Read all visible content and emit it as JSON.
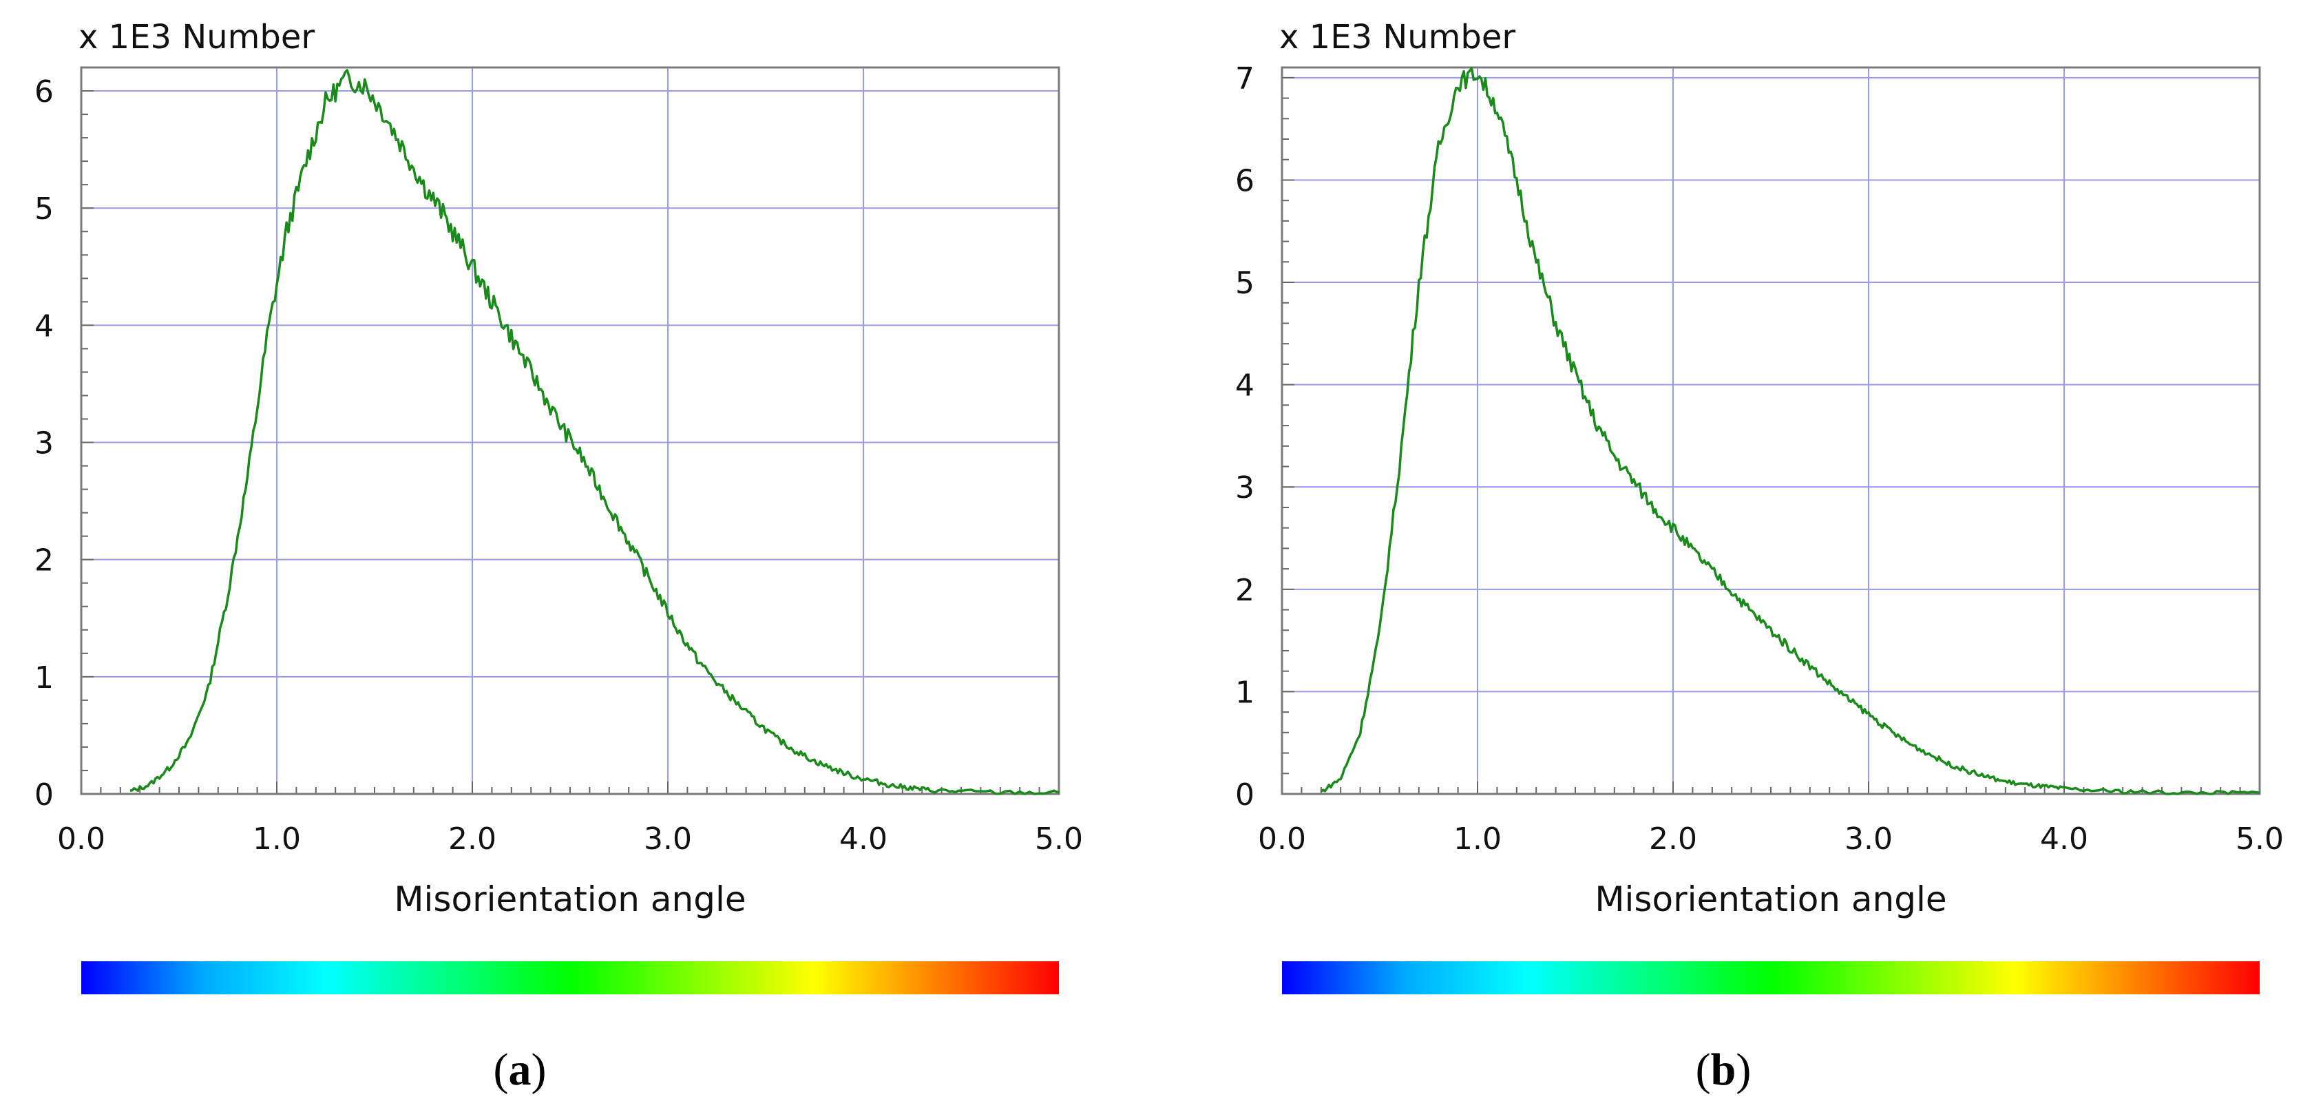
{
  "chart_data": [
    {
      "type": "line",
      "caption_letter": "a",
      "ylabel": "x 1E3 Number",
      "xlabel": "Misorientation angle",
      "xlim": [
        0,
        5
      ],
      "ylim": [
        0,
        6.2
      ],
      "xticks": [
        "0.0",
        "1.0",
        "2.0",
        "3.0",
        "4.0",
        "5.0"
      ],
      "yticks": [
        "0",
        "1",
        "2",
        "3",
        "4",
        "5",
        "6"
      ],
      "grid": true,
      "line_color": "#1a8a1a",
      "colorbar": [
        "#0000ff",
        "#00aaff",
        "#00ffff",
        "#00ff80",
        "#00ff00",
        "#80ff00",
        "#ffff00",
        "#ff8000",
        "#ff0000"
      ],
      "x": [
        0.25,
        0.35,
        0.45,
        0.55,
        0.65,
        0.75,
        0.85,
        0.95,
        1.05,
        1.15,
        1.25,
        1.35,
        1.45,
        1.55,
        1.65,
        1.75,
        1.85,
        1.95,
        2.05,
        2.15,
        2.25,
        2.35,
        2.45,
        2.55,
        2.65,
        2.75,
        2.85,
        2.95,
        3.05,
        3.15,
        3.25,
        3.35,
        3.45,
        3.55,
        3.65,
        3.75,
        3.85,
        3.95,
        4.05,
        4.15,
        4.25,
        4.35,
        4.5,
        4.75,
        5.0
      ],
      "y": [
        0.02,
        0.08,
        0.22,
        0.45,
        0.9,
        1.7,
        2.7,
        3.9,
        4.8,
        5.4,
        5.9,
        6.1,
        6.05,
        5.8,
        5.5,
        5.2,
        4.95,
        4.65,
        4.35,
        4.05,
        3.75,
        3.45,
        3.15,
        2.9,
        2.6,
        2.3,
        2.0,
        1.7,
        1.4,
        1.15,
        0.95,
        0.78,
        0.62,
        0.48,
        0.37,
        0.28,
        0.21,
        0.15,
        0.11,
        0.07,
        0.05,
        0.03,
        0.02,
        0.01,
        0.01
      ]
    },
    {
      "type": "line",
      "caption_letter": "b",
      "ylabel": "x 1E3 Number",
      "xlabel": "Misorientation angle",
      "xlim": [
        0,
        5
      ],
      "ylim": [
        0,
        7.1
      ],
      "xticks": [
        "0.0",
        "1.0",
        "2.0",
        "3.0",
        "4.0",
        "5.0"
      ],
      "yticks": [
        "0",
        "1",
        "2",
        "3",
        "4",
        "5",
        "6",
        "7"
      ],
      "grid": true,
      "line_color": "#1a8a1a",
      "colorbar": [
        "#0000ff",
        "#00aaff",
        "#00ffff",
        "#00ff80",
        "#00ff00",
        "#80ff00",
        "#ffff00",
        "#ff8000",
        "#ff0000"
      ],
      "x": [
        0.2,
        0.3,
        0.4,
        0.5,
        0.6,
        0.7,
        0.8,
        0.9,
        1.0,
        1.1,
        1.2,
        1.3,
        1.4,
        1.5,
        1.6,
        1.7,
        1.8,
        1.9,
        2.0,
        2.1,
        2.2,
        2.3,
        2.4,
        2.5,
        2.6,
        2.7,
        2.8,
        2.9,
        3.0,
        3.1,
        3.2,
        3.3,
        3.4,
        3.5,
        3.6,
        3.7,
        3.8,
        3.9,
        4.0,
        4.2,
        4.4,
        4.6,
        4.8,
        5.0
      ],
      "y": [
        0.02,
        0.15,
        0.6,
        1.6,
        3.2,
        5.0,
        6.3,
        6.95,
        7.05,
        6.7,
        6.0,
        5.2,
        4.6,
        4.1,
        3.65,
        3.3,
        3.05,
        2.8,
        2.6,
        2.38,
        2.18,
        1.98,
        1.78,
        1.6,
        1.42,
        1.25,
        1.08,
        0.92,
        0.78,
        0.63,
        0.5,
        0.4,
        0.3,
        0.23,
        0.17,
        0.12,
        0.09,
        0.07,
        0.05,
        0.03,
        0.02,
        0.01,
        0.01,
        0.01
      ]
    }
  ]
}
